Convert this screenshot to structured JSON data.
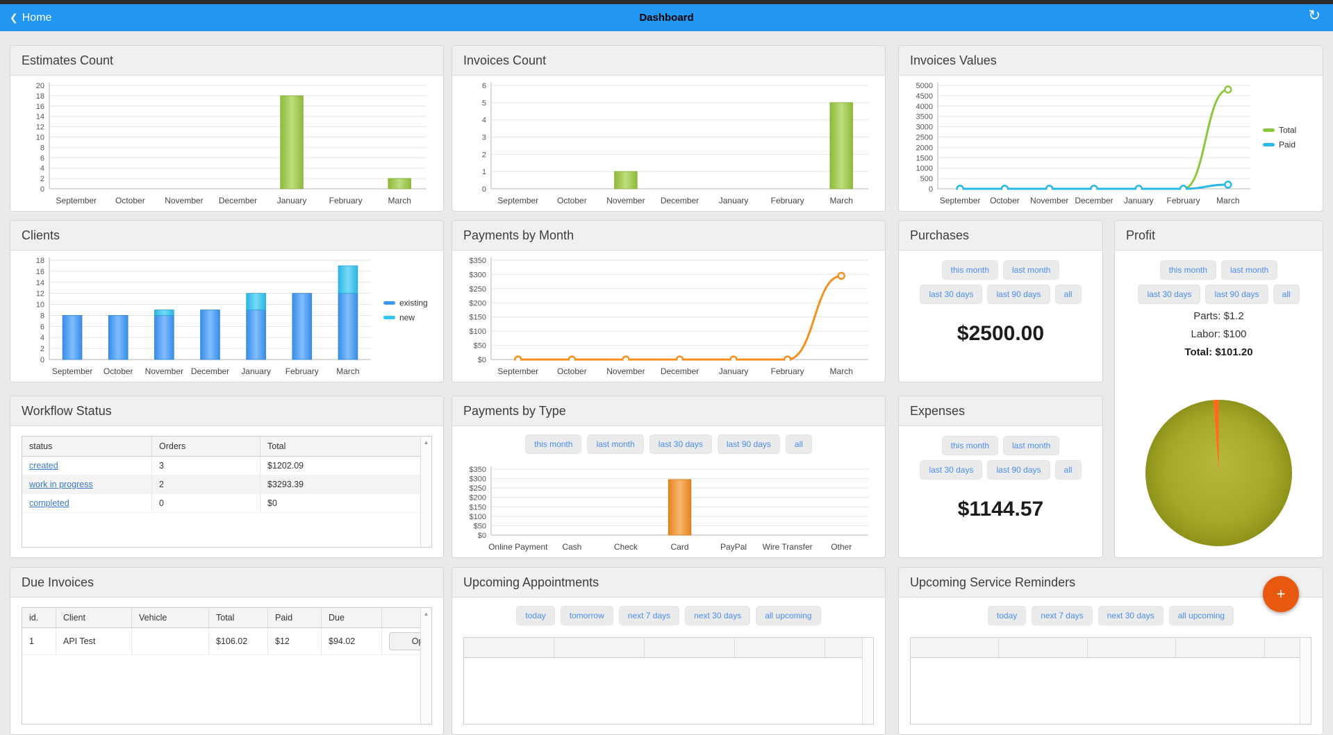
{
  "topbar": {
    "back_label": "Home",
    "title": "Dashboard"
  },
  "icons": {
    "back": "❮",
    "refresh": "↻",
    "scroll_up": "▲",
    "fab_plus": "+"
  },
  "filters": {
    "period5": [
      "this month",
      "last month",
      "last 30 days",
      "last 90 days",
      "all"
    ],
    "appointments": [
      "today",
      "tomorrow",
      "next 7 days",
      "next 30 days",
      "all upcoming"
    ],
    "reminders": [
      "today",
      "next 7 days",
      "next 30 days",
      "all upcoming"
    ]
  },
  "panels": {
    "estimates_count": {
      "title": "Estimates Count"
    },
    "invoices_count": {
      "title": "Invoices Count"
    },
    "invoices_values": {
      "title": "Invoices Values"
    },
    "clients": {
      "title": "Clients"
    },
    "payments_by_month": {
      "title": "Payments by Month"
    },
    "purchases": {
      "title": "Purchases",
      "value": "$2500.00"
    },
    "profit": {
      "title": "Profit",
      "parts": "Parts: $1.2",
      "labor": "Labor: $100",
      "total": "Total: $101.20"
    },
    "workflow_status": {
      "title": "Workflow Status",
      "columns": [
        "status",
        "Orders",
        "Total"
      ],
      "rows": [
        {
          "status": "created",
          "orders": "3",
          "total": "$1202.09"
        },
        {
          "status": "work in progress",
          "orders": "2",
          "total": "$3293.39"
        },
        {
          "status": "completed",
          "orders": "0",
          "total": "$0"
        }
      ]
    },
    "payments_by_type": {
      "title": "Payments by Type"
    },
    "expenses": {
      "title": "Expenses",
      "value": "$1144.57"
    },
    "due_invoices": {
      "title": "Due Invoices",
      "columns": [
        "id.",
        "Client",
        "Vehicle",
        "Total",
        "Paid",
        "Due",
        ""
      ],
      "rows": [
        {
          "id": "1",
          "client": "API Test",
          "vehicle": "",
          "total": "$106.02",
          "paid": "$12",
          "due": "$94.02",
          "action": "Open"
        }
      ]
    },
    "upcoming_appointments": {
      "title": "Upcoming Appointments"
    },
    "upcoming_service_reminders": {
      "title": "Upcoming Service Reminders"
    }
  },
  "colors": {
    "topbar_blue": "#2196f3",
    "bar_green": "#9acb3b",
    "bar_blue": "#3b99fc",
    "bar_cyan": "#2fc6f5",
    "line_green": "#8dc63f",
    "line_cyan": "#29b6e8",
    "orange": "#f78f1e",
    "pie_olive": "#a4a626",
    "pie_orange": "#ff6a1e",
    "fab_orange": "#e8590f",
    "link_blue": "#3a79c3"
  },
  "chart_data": [
    {
      "id": "estimates_count",
      "type": "bar",
      "title": "Estimates Count",
      "categories": [
        "September",
        "October",
        "November",
        "December",
        "January",
        "February",
        "March"
      ],
      "values": [
        0,
        0,
        0,
        0,
        18,
        0,
        2
      ],
      "ylim": [
        0,
        20
      ],
      "ystep": 2,
      "color": "#9acb3b",
      "grid": true
    },
    {
      "id": "invoices_count",
      "type": "bar",
      "title": "Invoices Count",
      "categories": [
        "September",
        "October",
        "November",
        "December",
        "January",
        "February",
        "March"
      ],
      "values": [
        0,
        0,
        1,
        0,
        0,
        0,
        5
      ],
      "ylim": [
        0,
        6
      ],
      "ystep": 1,
      "color": "#9acb3b",
      "grid": true
    },
    {
      "id": "invoices_values",
      "type": "line",
      "title": "Invoices Values",
      "categories": [
        "September",
        "October",
        "November",
        "December",
        "January",
        "February",
        "March"
      ],
      "series": [
        {
          "name": "Total",
          "color": "#8dc63f",
          "values": [
            0,
            0,
            0,
            0,
            0,
            0,
            4800
          ]
        },
        {
          "name": "Paid",
          "color": "#29b6e8",
          "values": [
            0,
            0,
            0,
            0,
            0,
            0,
            200
          ]
        }
      ],
      "ylim": [
        0,
        5000
      ],
      "ystep": 500,
      "legend": "right",
      "grid": true
    },
    {
      "id": "clients",
      "type": "bar",
      "stacked": true,
      "title": "Clients",
      "categories": [
        "September",
        "October",
        "November",
        "December",
        "January",
        "February",
        "March"
      ],
      "series": [
        {
          "name": "existing",
          "color": "#3b99fc",
          "values": [
            8,
            8,
            8,
            9,
            9,
            12,
            12
          ]
        },
        {
          "name": "new",
          "color": "#2fc6f5",
          "values": [
            0,
            0,
            1,
            0,
            3,
            0,
            5
          ]
        }
      ],
      "ylim": [
        0,
        18
      ],
      "ystep": 2,
      "legend": "right",
      "grid": true
    },
    {
      "id": "payments_by_month",
      "type": "line",
      "title": "Payments by Month",
      "categories": [
        "September",
        "October",
        "November",
        "December",
        "January",
        "February",
        "March"
      ],
      "series": [
        {
          "name": "payments",
          "color": "#f78f1e",
          "values": [
            0,
            0,
            0,
            0,
            0,
            0,
            295
          ]
        }
      ],
      "ylim": [
        0,
        350
      ],
      "ystep": 50,
      "yprefix": "$",
      "grid": true
    },
    {
      "id": "payments_by_type",
      "type": "bar",
      "title": "Payments by Type",
      "categories": [
        "Online Payment",
        "Cash",
        "Check",
        "Card",
        "PayPal",
        "Wire Transfer",
        "Other"
      ],
      "values": [
        0,
        0,
        0,
        295,
        0,
        0,
        0
      ],
      "ylim": [
        0,
        350
      ],
      "ystep": 50,
      "yprefix": "$",
      "color": "#f78f1e",
      "grid": true
    },
    {
      "id": "profit_pie",
      "type": "pie",
      "slices": [
        {
          "name": "Labor",
          "value": 100,
          "color": "olive"
        },
        {
          "name": "Parts",
          "value": 1.2,
          "color": "#ff6a1e"
        }
      ]
    }
  ]
}
